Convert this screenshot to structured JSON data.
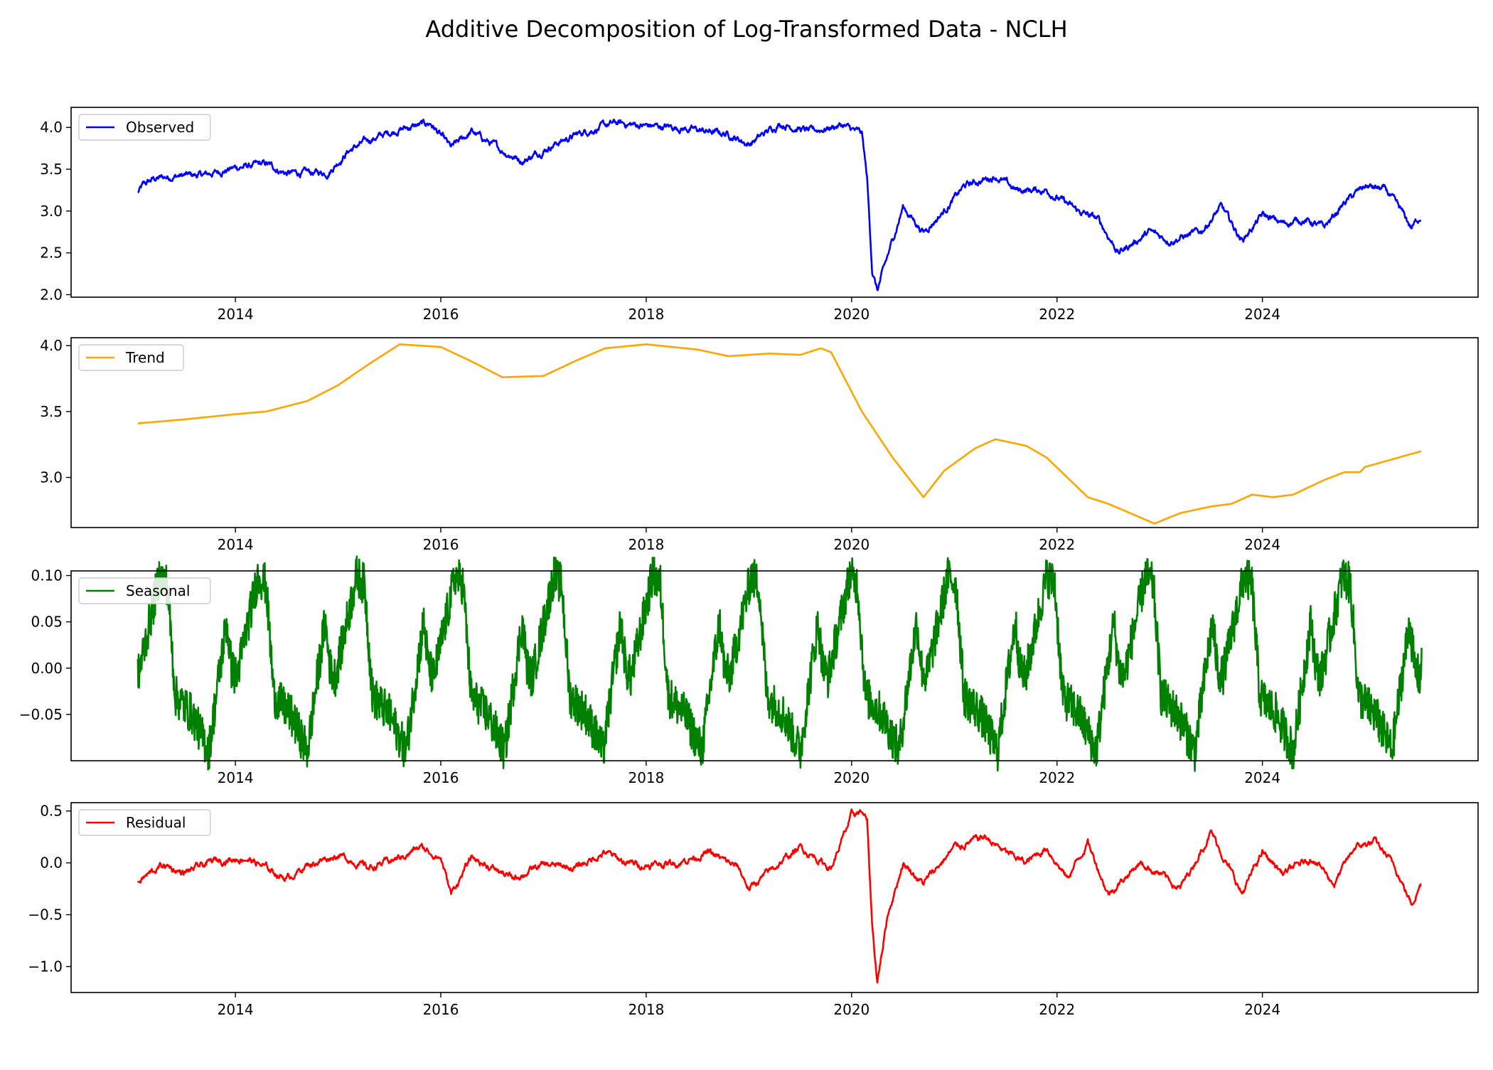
{
  "title": "Additive Decomposition of Log-Transformed Data - NCLH",
  "chart_data": [
    {
      "type": "line",
      "series": [
        {
          "name": "Observed",
          "color": "#0000ff",
          "values": [
            [
              2013.05,
              3.22
            ],
            [
              2013.1,
              3.3
            ],
            [
              2013.2,
              3.38
            ],
            [
              2013.4,
              3.42
            ],
            [
              2013.7,
              3.43
            ],
            [
              2014.0,
              3.52
            ],
            [
              2014.3,
              3.56
            ],
            [
              2014.5,
              3.45
            ],
            [
              2014.9,
              3.46
            ],
            [
              2015.1,
              3.72
            ],
            [
              2015.3,
              3.85
            ],
            [
              2015.6,
              3.98
            ],
            [
              2015.9,
              4.05
            ],
            [
              2016.1,
              3.75
            ],
            [
              2016.3,
              3.95
            ],
            [
              2016.6,
              3.72
            ],
            [
              2016.8,
              3.6
            ],
            [
              2017.1,
              3.8
            ],
            [
              2017.4,
              3.95
            ],
            [
              2017.7,
              4.05
            ],
            [
              2018.0,
              4.02
            ],
            [
              2018.3,
              4.0
            ],
            [
              2018.6,
              3.95
            ],
            [
              2018.8,
              3.92
            ],
            [
              2019.0,
              3.8
            ],
            [
              2019.3,
              4.05
            ],
            [
              2019.6,
              3.95
            ],
            [
              2019.9,
              4.03
            ],
            [
              2020.1,
              3.92
            ],
            [
              2020.15,
              3.4
            ],
            [
              2020.2,
              2.3
            ],
            [
              2020.25,
              2.05
            ],
            [
              2020.35,
              2.45
            ],
            [
              2020.5,
              3.05
            ],
            [
              2020.7,
              2.75
            ],
            [
              2020.9,
              3.0
            ],
            [
              2021.1,
              3.3
            ],
            [
              2021.4,
              3.42
            ],
            [
              2021.6,
              3.25
            ],
            [
              2021.9,
              3.25
            ],
            [
              2022.2,
              3.0
            ],
            [
              2022.4,
              2.9
            ],
            [
              2022.6,
              2.5
            ],
            [
              2022.9,
              2.75
            ],
            [
              2023.1,
              2.65
            ],
            [
              2023.4,
              2.75
            ],
            [
              2023.6,
              3.05
            ],
            [
              2023.8,
              2.65
            ],
            [
              2024.0,
              2.95
            ],
            [
              2024.2,
              2.85
            ],
            [
              2024.4,
              2.9
            ],
            [
              2024.6,
              2.8
            ],
            [
              2024.8,
              3.1
            ],
            [
              2025.0,
              3.3
            ],
            [
              2025.2,
              3.25
            ],
            [
              2025.35,
              3.0
            ],
            [
              2025.45,
              2.8
            ],
            [
              2025.55,
              2.95
            ]
          ]
        }
      ],
      "xlim": [
        2012.4,
        2026.1
      ],
      "ylim": [
        1.97,
        4.24
      ],
      "xticks": [
        2014,
        2016,
        2018,
        2020,
        2022,
        2024
      ],
      "yticks": [
        2.0,
        2.5,
        3.0,
        3.5,
        4.0
      ],
      "ytick_labels": [
        "2.0",
        "2.5",
        "3.0",
        "3.5",
        "4.0"
      ],
      "legend": "upper left"
    },
    {
      "type": "line",
      "series": [
        {
          "name": "Trend",
          "color": "#ffa500",
          "values": [
            [
              2013.05,
              3.41
            ],
            [
              2013.5,
              3.44
            ],
            [
              2014.0,
              3.48
            ],
            [
              2014.3,
              3.5
            ],
            [
              2014.7,
              3.58
            ],
            [
              2015.0,
              3.7
            ],
            [
              2015.3,
              3.86
            ],
            [
              2015.6,
              4.01
            ],
            [
              2016.0,
              3.99
            ],
            [
              2016.3,
              3.88
            ],
            [
              2016.6,
              3.76
            ],
            [
              2017.0,
              3.77
            ],
            [
              2017.3,
              3.88
            ],
            [
              2017.6,
              3.98
            ],
            [
              2018.0,
              4.01
            ],
            [
              2018.5,
              3.97
            ],
            [
              2018.8,
              3.92
            ],
            [
              2019.2,
              3.94
            ],
            [
              2019.5,
              3.93
            ],
            [
              2019.7,
              3.98
            ],
            [
              2019.8,
              3.95
            ],
            [
              2020.1,
              3.5
            ],
            [
              2020.4,
              3.15
            ],
            [
              2020.7,
              2.85
            ],
            [
              2020.9,
              3.05
            ],
            [
              2021.2,
              3.22
            ],
            [
              2021.4,
              3.29
            ],
            [
              2021.7,
              3.24
            ],
            [
              2021.9,
              3.15
            ],
            [
              2022.3,
              2.85
            ],
            [
              2022.5,
              2.8
            ],
            [
              2022.8,
              2.7
            ],
            [
              2022.95,
              2.65
            ],
            [
              2023.2,
              2.73
            ],
            [
              2023.5,
              2.78
            ],
            [
              2023.7,
              2.8
            ],
            [
              2023.9,
              2.87
            ],
            [
              2024.1,
              2.85
            ],
            [
              2024.3,
              2.87
            ],
            [
              2024.6,
              2.98
            ],
            [
              2024.8,
              3.04
            ],
            [
              2024.95,
              3.04
            ],
            [
              2025.0,
              3.08
            ],
            [
              2025.55,
              3.2
            ]
          ]
        }
      ],
      "xlim": [
        2012.4,
        2026.1
      ],
      "ylim": [
        2.62,
        4.06
      ],
      "xticks": [
        2014,
        2016,
        2018,
        2020,
        2022,
        2024
      ],
      "yticks": [
        3.0,
        3.5,
        4.0
      ],
      "ytick_labels": [
        "3.0",
        "3.5",
        "4.0"
      ],
      "legend": "upper left"
    },
    {
      "type": "line",
      "series": [
        {
          "name": "Seasonal",
          "color": "#008000",
          "period_years": 0.96,
          "start": 2013.05,
          "end": 2025.55,
          "cycle_shape": [
            [
              0.0,
              -0.01
            ],
            [
              0.08,
              0.03
            ],
            [
              0.22,
              0.1
            ],
            [
              0.3,
              0.09
            ],
            [
              0.38,
              -0.03
            ],
            [
              0.55,
              -0.05
            ],
            [
              0.72,
              -0.09
            ],
            [
              0.82,
              -0.01
            ],
            [
              0.9,
              0.05
            ],
            [
              0.95,
              0.0
            ],
            [
              1.0,
              -0.01
            ]
          ]
        }
      ],
      "xlim": [
        2012.4,
        2026.1
      ],
      "ylim": [
        -0.1,
        0.105
      ],
      "xticks": [
        2014,
        2016,
        2018,
        2020,
        2022,
        2024
      ],
      "yticks": [
        -0.05,
        0.0,
        0.05,
        0.1
      ],
      "ytick_labels": [
        "−0.05",
        "0.00",
        "0.05",
        "0.10"
      ],
      "legend": "upper left"
    },
    {
      "type": "line",
      "series": [
        {
          "name": "Residual",
          "color": "#ff0000",
          "values": [
            [
              2013.05,
              -0.18
            ],
            [
              2013.3,
              -0.02
            ],
            [
              2013.5,
              -0.1
            ],
            [
              2013.8,
              0.02
            ],
            [
              2014.1,
              0.05
            ],
            [
              2014.3,
              -0.05
            ],
            [
              2014.5,
              -0.15
            ],
            [
              2014.7,
              -0.02
            ],
            [
              2015.0,
              0.08
            ],
            [
              2015.3,
              -0.05
            ],
            [
              2015.6,
              0.05
            ],
            [
              2015.8,
              0.15
            ],
            [
              2016.0,
              0.05
            ],
            [
              2016.1,
              -0.3
            ],
            [
              2016.3,
              0.05
            ],
            [
              2016.5,
              -0.05
            ],
            [
              2016.7,
              -0.15
            ],
            [
              2017.0,
              -0.02
            ],
            [
              2017.3,
              -0.05
            ],
            [
              2017.6,
              0.1
            ],
            [
              2017.8,
              0.0
            ],
            [
              2018.0,
              -0.02
            ],
            [
              2018.3,
              0.0
            ],
            [
              2018.6,
              0.1
            ],
            [
              2018.9,
              -0.05
            ],
            [
              2019.0,
              -0.25
            ],
            [
              2019.3,
              0.0
            ],
            [
              2019.5,
              0.15
            ],
            [
              2019.8,
              -0.05
            ],
            [
              2020.0,
              0.45
            ],
            [
              2020.1,
              0.5
            ],
            [
              2020.15,
              0.4
            ],
            [
              2020.2,
              -0.6
            ],
            [
              2020.25,
              -1.15
            ],
            [
              2020.35,
              -0.5
            ],
            [
              2020.5,
              0.0
            ],
            [
              2020.7,
              -0.2
            ],
            [
              2021.0,
              0.15
            ],
            [
              2021.3,
              0.25
            ],
            [
              2021.5,
              0.1
            ],
            [
              2021.7,
              0.0
            ],
            [
              2021.9,
              0.15
            ],
            [
              2022.1,
              -0.15
            ],
            [
              2022.3,
              0.2
            ],
            [
              2022.5,
              -0.3
            ],
            [
              2022.8,
              0.0
            ],
            [
              2023.0,
              -0.1
            ],
            [
              2023.2,
              -0.25
            ],
            [
              2023.5,
              0.3
            ],
            [
              2023.8,
              -0.3
            ],
            [
              2024.0,
              0.1
            ],
            [
              2024.2,
              -0.1
            ],
            [
              2024.5,
              0.05
            ],
            [
              2024.7,
              -0.2
            ],
            [
              2024.9,
              0.15
            ],
            [
              2025.1,
              0.2
            ],
            [
              2025.3,
              -0.05
            ],
            [
              2025.45,
              -0.4
            ],
            [
              2025.55,
              -0.18
            ]
          ]
        }
      ],
      "xlim": [
        2012.4,
        2026.1
      ],
      "ylim": [
        -1.25,
        0.58
      ],
      "xticks": [
        2014,
        2016,
        2018,
        2020,
        2022,
        2024
      ],
      "yticks": [
        -1.0,
        -0.5,
        0.0,
        0.5
      ],
      "ytick_labels": [
        "−1.0",
        "−0.5",
        "0.0",
        "0.5"
      ],
      "legend": "upper left"
    }
  ]
}
